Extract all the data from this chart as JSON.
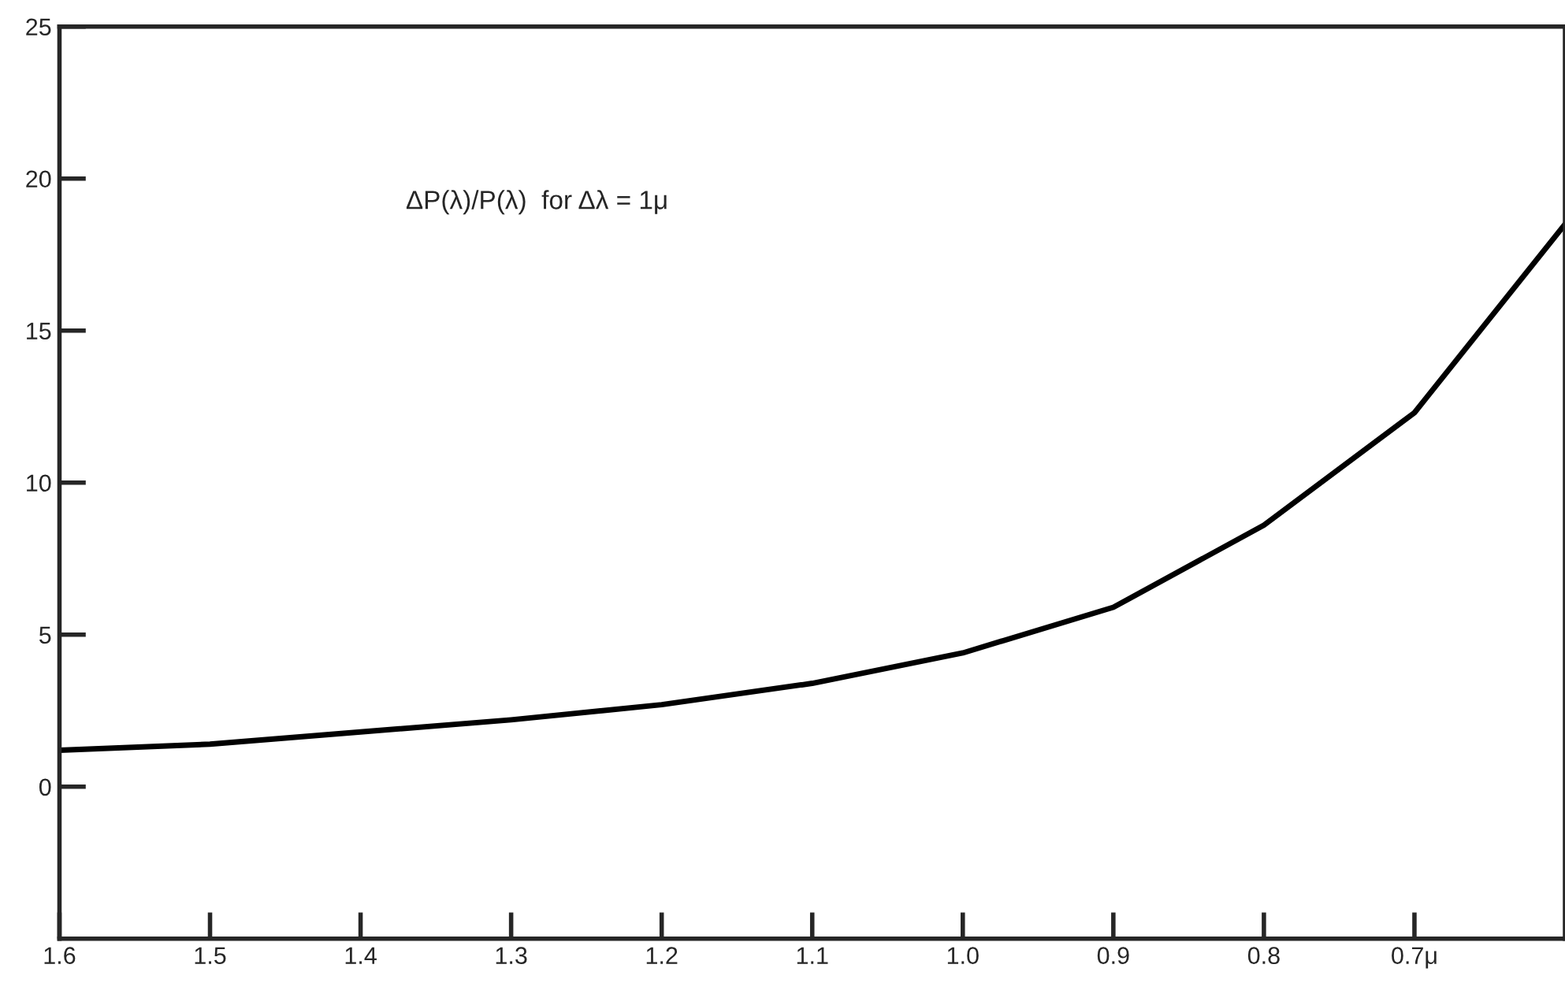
{
  "chart_data": {
    "type": "line",
    "x": [
      1.6,
      1.5,
      1.4,
      1.3,
      1.2,
      1.1,
      1.0,
      0.9,
      0.8,
      0.7,
      0.6
    ],
    "series": [
      {
        "color": "#000000",
        "values": [
          1.2,
          1.4,
          1.8,
          2.2,
          2.7,
          3.4,
          4.4,
          5.9,
          8.6,
          12.3,
          18.5
        ]
      }
    ],
    "xlim": [
      1.6,
      0.6
    ],
    "ylim": [
      -5,
      25
    ],
    "xticks": [
      {
        "value": 1.6,
        "label": "1.6"
      },
      {
        "value": 1.5,
        "label": "1.5"
      },
      {
        "value": 1.4,
        "label": "1.4"
      },
      {
        "value": 1.3,
        "label": "1.3"
      },
      {
        "value": 1.2,
        "label": "1.2"
      },
      {
        "value": 1.1,
        "label": "1.1"
      },
      {
        "value": 1.0,
        "label": "1.0"
      },
      {
        "value": 0.9,
        "label": "0.9"
      },
      {
        "value": 0.8,
        "label": "0.8"
      },
      {
        "value": 0.7,
        "label": "0.7μ"
      }
    ],
    "yticks": [
      0,
      5,
      10,
      15,
      20,
      25
    ],
    "annotations": [
      "ΔP(λ)/P(λ)  for Δλ = 1μ"
    ],
    "grid": false,
    "legend": false,
    "marker": "none",
    "line_style": "solid"
  }
}
